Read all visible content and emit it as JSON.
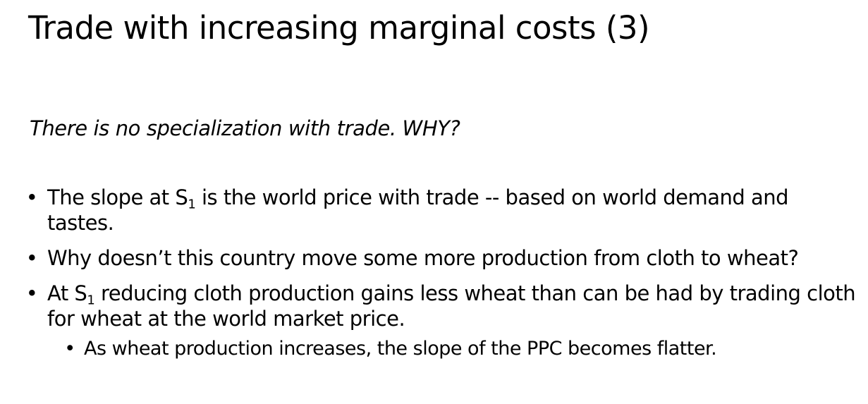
{
  "slide": {
    "title": "Trade with increasing marginal costs (3)",
    "subtitle": "There is no specialization with trade. WHY?",
    "bullet_char": "•",
    "bullets": [
      {
        "pre": "The slope at S",
        "sub": "1",
        "post": " is the world price with trade -- based on world demand and tastes."
      },
      {
        "text": "Why doesn’t this country move some more production from cloth to wheat?"
      },
      {
        "pre": "At S",
        "sub": "1",
        "post": " reducing cloth production gains less wheat than can be had by trading cloth for wheat at the world market price."
      }
    ],
    "sub_bullets": [
      {
        "text": "As wheat  production increases, the slope of the PPC becomes flatter."
      }
    ]
  }
}
